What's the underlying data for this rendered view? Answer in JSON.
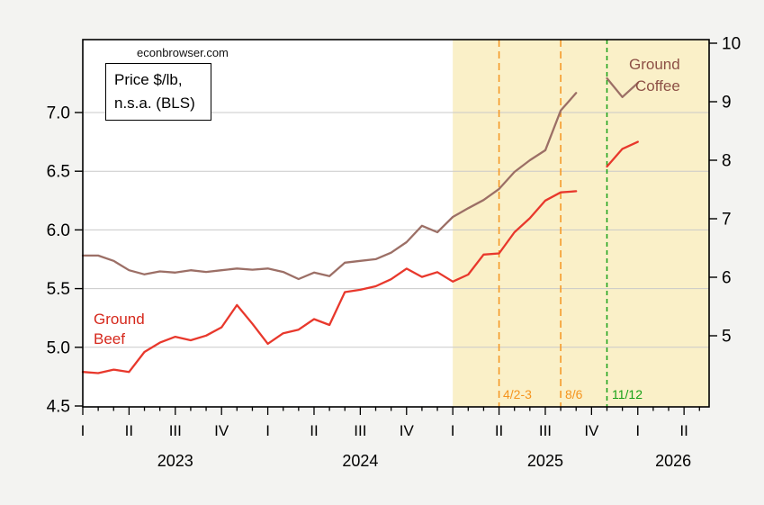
{
  "watermark": "econbrowser.com",
  "note_box": {
    "line1": "Price $/lb,",
    "line2": "n.s.a. (BLS)"
  },
  "series_labels": {
    "beef": {
      "line1": "Ground",
      "line2": "Beef",
      "color": "#D6281C"
    },
    "coffee": {
      "line1": "Ground",
      "line2": "Coffee",
      "color": "#8D5046"
    }
  },
  "colors": {
    "background": "#F3F3F1",
    "plot_background": "#FFFFFF",
    "shaded_region": "#FAF0C8",
    "gridline": "#C9C9C9",
    "frame": "#000000",
    "beef_line": "#E8382C",
    "coffee_line": "#9C6F66",
    "orange_event": "#F5941E",
    "green_event": "#16A016"
  },
  "chart_data": {
    "type": "line",
    "title": "Price $/lb, n.s.a. (BLS)",
    "source_watermark": "econbrowser.com",
    "months": [
      "2023-01",
      "2023-02",
      "2023-03",
      "2023-04",
      "2023-05",
      "2023-06",
      "2023-07",
      "2023-08",
      "2023-09",
      "2023-10",
      "2023-11",
      "2023-12",
      "2024-01",
      "2024-02",
      "2024-03",
      "2024-04",
      "2024-05",
      "2024-06",
      "2024-07",
      "2024-08",
      "2024-09",
      "2024-10",
      "2024-11",
      "2024-12",
      "2025-01",
      "2025-02",
      "2025-03",
      "2025-04",
      "2025-05",
      "2025-06",
      "2025-07",
      "2025-08",
      "2025-09",
      "2025-10",
      "2025-11",
      "2025-12",
      "2026-01"
    ],
    "gap_months": [
      "2025-10"
    ],
    "series": [
      {
        "name": "Ground Beef",
        "axis": "left",
        "color": "#E8382C",
        "values": [
          4.79,
          4.78,
          4.81,
          4.79,
          4.96,
          5.04,
          5.09,
          5.06,
          5.1,
          5.17,
          5.36,
          5.2,
          5.03,
          5.12,
          5.15,
          5.24,
          5.19,
          5.47,
          5.49,
          5.52,
          5.58,
          5.67,
          5.6,
          5.64,
          5.56,
          5.62,
          5.79,
          5.8,
          5.98,
          6.1,
          6.25,
          6.32,
          6.33,
          null,
          6.54,
          6.69,
          6.75
        ]
      },
      {
        "name": "Ground Coffee",
        "axis": "right",
        "color": "#9C6F66",
        "values": [
          6.37,
          6.37,
          6.28,
          6.12,
          6.05,
          6.1,
          6.08,
          6.12,
          6.09,
          6.12,
          6.15,
          6.13,
          6.15,
          6.09,
          5.97,
          6.08,
          6.02,
          6.25,
          6.28,
          6.31,
          6.42,
          6.6,
          6.88,
          6.77,
          7.03,
          7.18,
          7.32,
          7.51,
          7.8,
          8.0,
          8.17,
          8.85,
          9.15,
          null,
          9.4,
          9.08,
          9.32
        ]
      }
    ],
    "y_left": {
      "tick_labels": [
        "4.5",
        "5.0",
        "5.5",
        "6.0",
        "6.5",
        "7.0"
      ],
      "tick_values": [
        4.5,
        5.0,
        5.5,
        6.0,
        6.5,
        7.0
      ],
      "series": "Ground Beef"
    },
    "y_right": {
      "tick_labels": [
        "5",
        "6",
        "7",
        "8",
        "9",
        "10"
      ],
      "tick_values": [
        5,
        6,
        7,
        8,
        9,
        10
      ],
      "series": "Ground Coffee"
    },
    "x_axis": {
      "quarter_tick_labels": [
        "I",
        "II",
        "III",
        "IV",
        "I",
        "II",
        "III",
        "IV",
        "I",
        "II",
        "III",
        "IV",
        "I",
        "II"
      ],
      "year_labels": [
        "2023",
        "2024",
        "2025",
        "2026"
      ]
    },
    "shaded_region": {
      "start": "2025-01",
      "end": "axis-end",
      "color": "#FAF0C8"
    },
    "event_lines": [
      {
        "label": "4/2-3",
        "x_month": "2025-04",
        "color": "#F5941E",
        "style": "dashed"
      },
      {
        "label": "8/6",
        "x_month": "2025-08",
        "color": "#F5941E",
        "style": "dashed"
      },
      {
        "label": "11/12",
        "x_month": "2025-11",
        "color": "#16A016",
        "style": "dashed"
      }
    ],
    "grid": true,
    "legend_position": "in-plot-text-labels"
  },
  "annotations": [
    {
      "label": "4/2-3"
    },
    {
      "label": "8/6"
    },
    {
      "label": "11/12"
    }
  ]
}
